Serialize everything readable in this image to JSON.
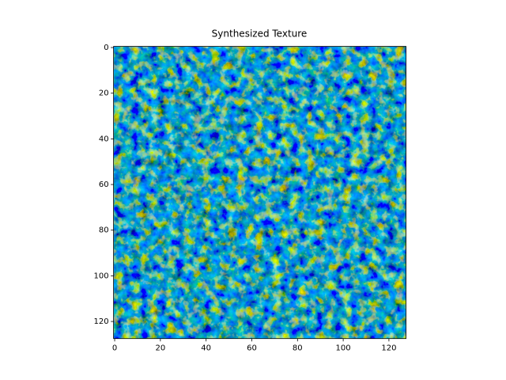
{
  "chart_data": {
    "type": "image",
    "title": "Synthesized Texture",
    "xlim": [
      -0.5,
      127.5
    ],
    "ylim": [
      127.5,
      -0.5
    ],
    "xticks": [
      0,
      20,
      40,
      60,
      80,
      100,
      120
    ],
    "yticks": [
      0,
      20,
      40,
      60,
      80,
      100,
      120
    ]
  }
}
